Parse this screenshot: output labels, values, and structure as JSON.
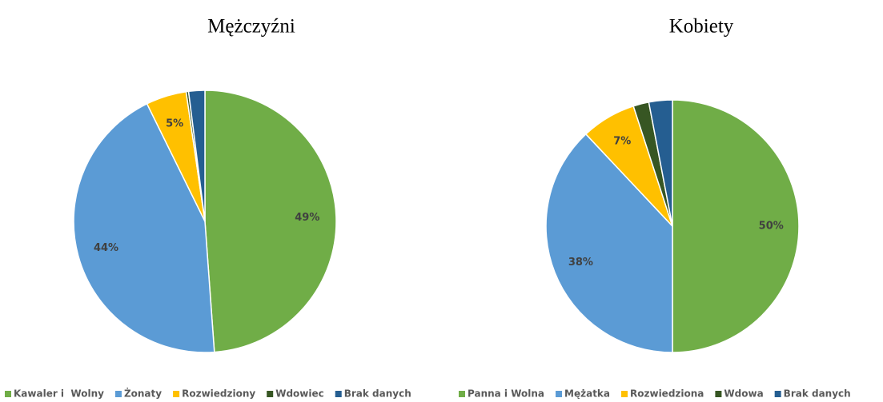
{
  "chart_data": [
    {
      "type": "pie",
      "title": "Mężczyźni",
      "categories": [
        "Kawaler i  Wolny",
        "Żonaty",
        "Rozwiedziony",
        "Wdowiec",
        "Brak danych"
      ],
      "values": [
        49,
        44,
        5,
        0.3,
        2
      ],
      "value_labels": [
        "49%",
        "44%",
        "5%",
        null,
        null
      ],
      "colors": [
        "#70ad47",
        "#5b9bd5",
        "#ffc000",
        "#375623",
        "#255e91"
      ],
      "legend": "bottom"
    },
    {
      "type": "pie",
      "title": "Kobiety",
      "categories": [
        "Panna i Wolna",
        "Mężatka",
        "Rozwiedziona",
        "Wdowa",
        "Brak danych"
      ],
      "values": [
        50,
        38,
        7,
        2,
        3
      ],
      "value_labels": [
        "50%",
        "38%",
        "7%",
        null,
        null
      ],
      "colors": [
        "#70ad47",
        "#5b9bd5",
        "#ffc000",
        "#375623",
        "#255e91"
      ],
      "legend": "bottom"
    }
  ]
}
